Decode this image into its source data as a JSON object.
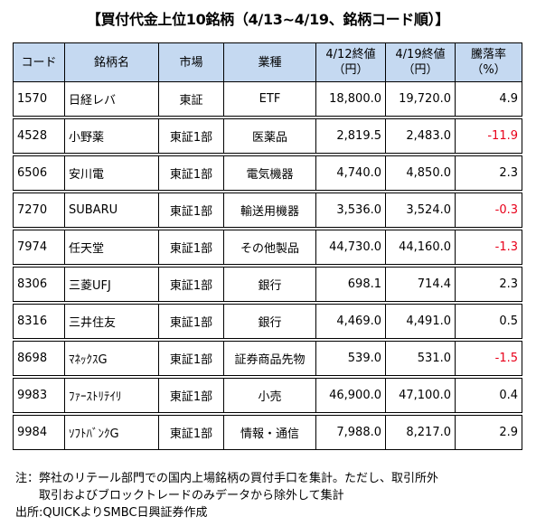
{
  "title": "【買付代金上位10銘柄（4/13~4/19、銘柄コード順）】",
  "table": {
    "headers": {
      "code": "コード",
      "name": "銘柄名",
      "market": "市場",
      "sector": "業種",
      "close_prev_line1": "4/12終値",
      "close_prev_line2": "（円）",
      "close_curr_line1": "4/19終値",
      "close_curr_line2": "（円）",
      "rate_line1": "騰落率",
      "rate_line2": "（%）"
    },
    "rows": [
      {
        "code": "1570",
        "name": "日経レバ",
        "market": "東証",
        "sector": "ETF",
        "close_prev": "18,800.0",
        "close_curr": "19,720.0",
        "rate": "4.9"
      },
      {
        "code": "4528",
        "name": "小野薬",
        "market": "東証1部",
        "sector": "医薬品",
        "close_prev": "2,819.5",
        "close_curr": "2,483.0",
        "rate": "-11.9"
      },
      {
        "code": "6506",
        "name": "安川電",
        "market": "東証1部",
        "sector": "電気機器",
        "close_prev": "4,740.0",
        "close_curr": "4,850.0",
        "rate": "2.3"
      },
      {
        "code": "7270",
        "name": "SUBARU",
        "market": "東証1部",
        "sector": "輸送用機器",
        "close_prev": "3,536.0",
        "close_curr": "3,524.0",
        "rate": "-0.3"
      },
      {
        "code": "7974",
        "name": "任天堂",
        "market": "東証1部",
        "sector": "その他製品",
        "close_prev": "44,730.0",
        "close_curr": "44,160.0",
        "rate": "-1.3"
      },
      {
        "code": "8306",
        "name": "三菱UFJ",
        "market": "東証1部",
        "sector": "銀行",
        "close_prev": "698.1",
        "close_curr": "714.4",
        "rate": "2.3"
      },
      {
        "code": "8316",
        "name": "三井住友",
        "market": "東証1部",
        "sector": "銀行",
        "close_prev": "4,469.0",
        "close_curr": "4,491.0",
        "rate": "0.5"
      },
      {
        "code": "8698",
        "name": "ﾏﾈｯｸｽG",
        "market": "東証1部",
        "sector": "証券商品先物",
        "close_prev": "539.0",
        "close_curr": "531.0",
        "rate": "-1.5"
      },
      {
        "code": "9983",
        "name": "ﾌｧｰｽﾄﾘﾃｲﾘ",
        "market": "東証1部",
        "sector": "小売",
        "close_prev": "46,900.0",
        "close_curr": "47,100.0",
        "rate": "0.4"
      },
      {
        "code": "9984",
        "name": "ｿﾌﾄﾊﾞﾝｸG",
        "market": "東証1部",
        "sector": "情報・通信",
        "close_prev": "7,988.0",
        "close_curr": "8,217.0",
        "rate": "2.9"
      }
    ]
  },
  "notes": {
    "line1": "注：弊社のリテール部門での国内上場銘柄の買付手口を集計。ただし、取引所外",
    "line2": "取引およびブロックトレードのみデータから除外して集計",
    "line3": "出所:QUICKよりSMBC日興証券作成"
  },
  "colors": {
    "header_bg": "#c5d9f1",
    "negative": "#e8001a"
  }
}
